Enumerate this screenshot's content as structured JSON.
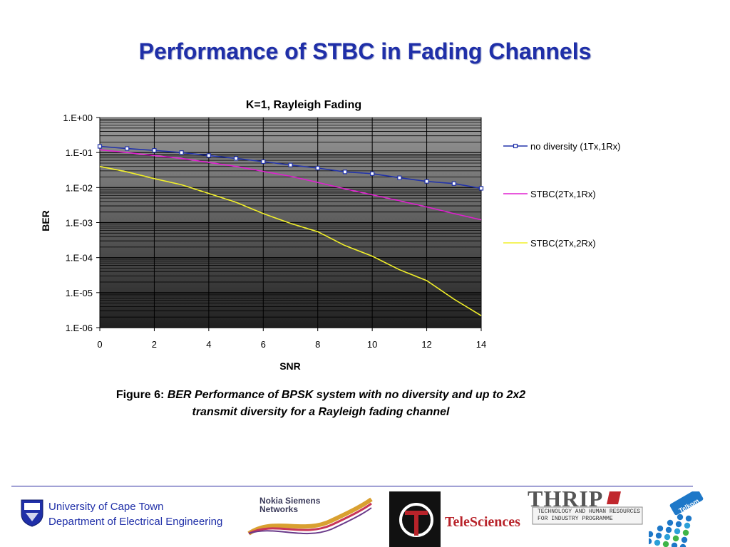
{
  "slide": {
    "title": "Performance of STBC in Fading Channels"
  },
  "chart_data": {
    "type": "line",
    "title": "K=1, Rayleigh Fading",
    "xlabel": "SNR",
    "ylabel": "BER",
    "xlim": [
      0,
      14
    ],
    "ylim": [
      1e-06,
      1
    ],
    "yscale": "log",
    "x_ticks": [
      "0",
      "2",
      "4",
      "6",
      "8",
      "10",
      "12",
      "14"
    ],
    "y_ticks": [
      "1.E+00",
      "1.E-01",
      "1.E-02",
      "1.E-03",
      "1.E-04",
      "1.E-05",
      "1.E-06"
    ],
    "grid": true,
    "legend_position": "right",
    "x": [
      0,
      1,
      2,
      3,
      4,
      5,
      6,
      7,
      8,
      9,
      10,
      11,
      12,
      13,
      14
    ],
    "series": [
      {
        "name": "no diversity (1Tx,1Rx)",
        "color": "#2233aa",
        "marker": "square",
        "values": [
          0.15,
          0.13,
          0.115,
          0.1,
          0.082,
          0.068,
          0.055,
          0.044,
          0.036,
          0.028,
          0.025,
          0.019,
          0.015,
          0.013,
          0.0095
        ]
      },
      {
        "name": "STBC(2Tx,1Rx)",
        "color": "#e020d0",
        "marker": "none",
        "values": [
          0.12,
          0.1,
          0.082,
          0.068,
          0.052,
          0.04,
          0.029,
          0.021,
          0.014,
          0.0092,
          0.0062,
          0.0042,
          0.0028,
          0.0018,
          0.0012
        ]
      },
      {
        "name": "STBC(2Tx,2Rx)",
        "color": "#f2f02a",
        "marker": "none",
        "values": [
          0.04,
          0.028,
          0.018,
          0.012,
          0.0068,
          0.0038,
          0.0018,
          0.00095,
          0.00055,
          0.00022,
          0.00011,
          4.5e-05,
          2.2e-05,
          6.5e-06,
          2.2e-06
        ]
      }
    ]
  },
  "caption": {
    "prefix": "Figure 6:",
    "line1": "BER Performance of BPSK system with no diversity and up to 2x2",
    "line2": "transmit diversity for a Rayleigh fading channel"
  },
  "footer": {
    "uct_line1": "University of Cape Town",
    "uct_line2": "Department of Electrical Engineering",
    "nsn_line1": "Nokia Siemens",
    "nsn_line2": "Networks",
    "teleSciences": "TeleSciences",
    "thrip": "THRIP",
    "thrip_sub1": "TECHNOLOGY AND HUMAN RESOURCES",
    "thrip_sub2": "FOR INDUSTRY PROGRAMME",
    "telkom": "Telkom"
  }
}
